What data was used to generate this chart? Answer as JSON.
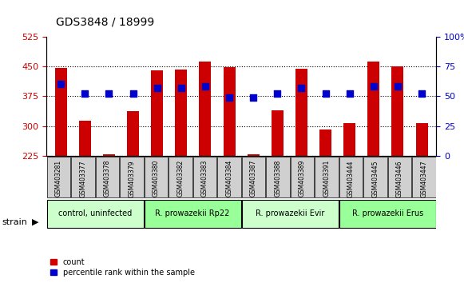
{
  "title": "GDS3848 / 18999",
  "samples": [
    "GSM403281",
    "GSM403377",
    "GSM403378",
    "GSM403379",
    "GSM403380",
    "GSM403382",
    "GSM403383",
    "GSM403384",
    "GSM403387",
    "GSM403388",
    "GSM403389",
    "GSM403391",
    "GSM403444",
    "GSM403445",
    "GSM403446",
    "GSM403447"
  ],
  "counts": [
    447,
    313,
    228,
    337,
    440,
    443,
    462,
    449,
    228,
    340,
    444,
    291,
    307,
    463,
    450,
    307
  ],
  "percentiles": [
    60,
    52,
    52,
    52,
    57,
    57,
    58,
    49,
    49,
    52,
    57,
    52,
    52,
    58,
    58,
    52
  ],
  "groups": [
    {
      "label": "control, uninfected",
      "start": 0,
      "end": 3,
      "color": "#ccffcc"
    },
    {
      "label": "R. prowazekii Rp22",
      "start": 4,
      "end": 7,
      "color": "#99ff99"
    },
    {
      "label": "R. prowazekii Evir",
      "start": 8,
      "end": 11,
      "color": "#ccffcc"
    },
    {
      "label": "R. prowazekii Erus",
      "start": 12,
      "end": 15,
      "color": "#99ff99"
    }
  ],
  "ylim_left": [
    225,
    525
  ],
  "ylim_right": [
    0,
    100
  ],
  "yticks_left": [
    225,
    300,
    375,
    450,
    525
  ],
  "yticks_right": [
    0,
    25,
    50,
    75,
    100
  ],
  "bar_color": "#cc0000",
  "dot_color": "#0000cc",
  "bar_width": 0.5,
  "grid_color": "#000000",
  "bg_color": "#ffffff",
  "plot_bg_color": "#ffffff",
  "tick_label_color_left": "#cc0000",
  "tick_label_color_right": "#0000cc",
  "legend_count_label": "count",
  "legend_pct_label": "percentile rank within the sample",
  "strain_label": "strain"
}
